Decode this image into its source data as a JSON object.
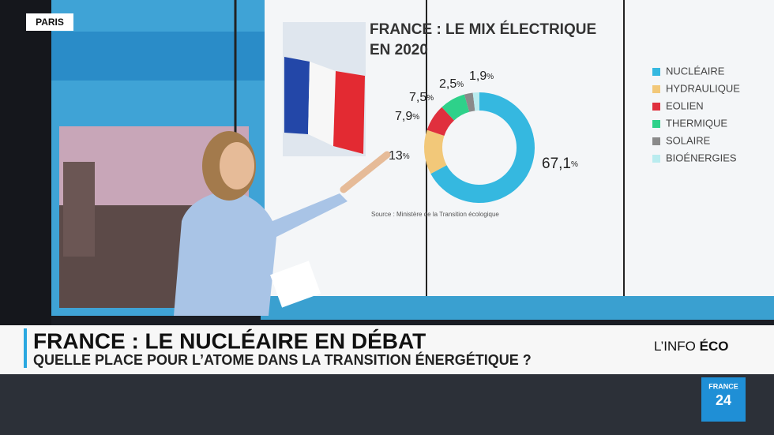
{
  "chart_data": {
    "type": "donut",
    "title": [
      "FRANCE : LE MIX ÉLECTRIQUE",
      "EN 2020"
    ],
    "categories": [
      "NUCLÉAIRE",
      "HYDRAULIQUE",
      "EOLIEN",
      "THERMIQUE",
      "SOLAIRE",
      "BIOÉNERGIES"
    ],
    "values": [
      67.1,
      13,
      7.9,
      7.5,
      2.5,
      1.9
    ],
    "value_labels": [
      "67,1",
      "13",
      "7,9",
      "7,5",
      "2,5",
      "1,9"
    ],
    "unit": "%",
    "colors": [
      "#35b8e0",
      "#f2c879",
      "#e0303e",
      "#2ed18a",
      "#8a8a8a",
      "#b9ecef"
    ],
    "source": "Source : Ministère de la Transition écologique"
  },
  "location": "PARIS",
  "banner": {
    "headline": "FRANCE : LE NUCLÉAIRE EN DÉBAT",
    "subheadline": "QUELLE PLACE POUR L’ATOME DANS LA TRANSITION ÉNERGÉTIQUE ?",
    "segment": {
      "prefix": "L’INFO",
      "bold": "ÉCO"
    }
  },
  "logo": {
    "line1": "FRANCE",
    "line2": "24"
  }
}
